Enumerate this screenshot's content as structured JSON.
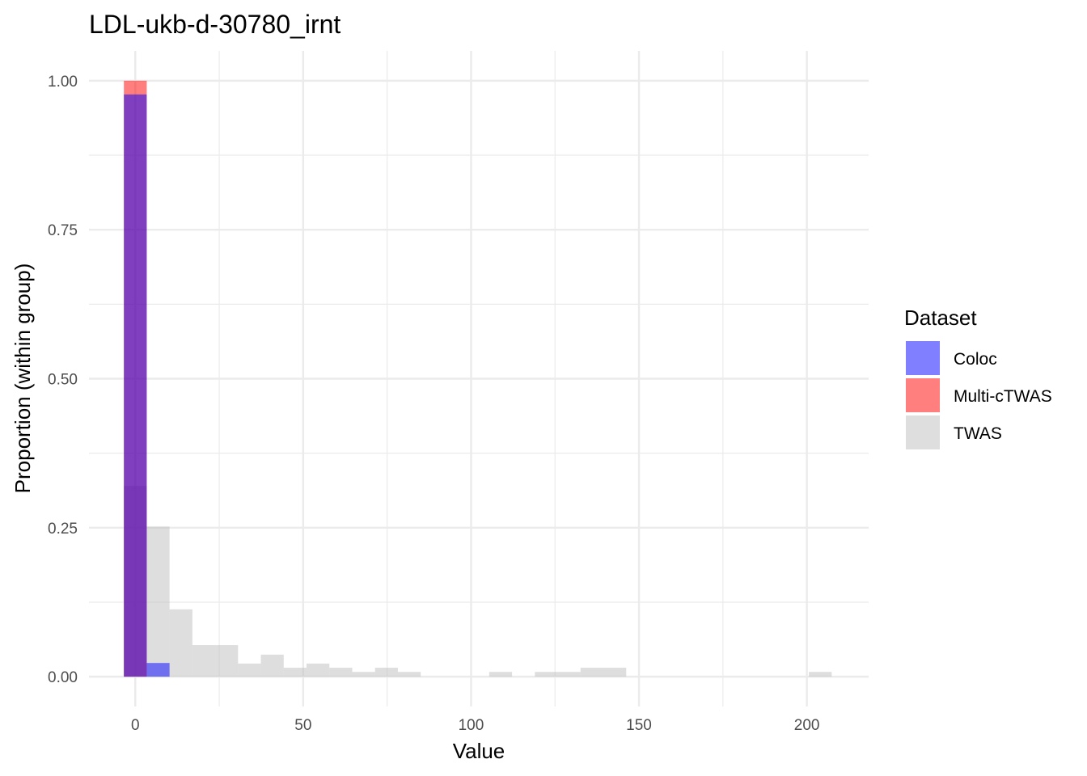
{
  "chart_data": {
    "type": "histogram",
    "title": "LDL-ukb-d-30780_irnt",
    "xlabel": "Value",
    "ylabel": "Proportion (within group)",
    "xlim": [
      -13.8,
      218.4
    ],
    "ylim": [
      -0.05,
      1.05
    ],
    "x_ticks": [
      0,
      50,
      100,
      150,
      200
    ],
    "x_tick_labels": [
      "0",
      "50",
      "100",
      "150",
      "200"
    ],
    "y_ticks": [
      0,
      0.25,
      0.5,
      0.75,
      1.0
    ],
    "y_tick_labels": [
      "0.00",
      "0.25",
      "0.50",
      "0.75",
      "1.00"
    ],
    "grid": true,
    "bin_width": 6.8,
    "legend": {
      "title": "Dataset",
      "position": "right",
      "items": [
        {
          "label": "Coloc",
          "color": "#0000FF"
        },
        {
          "label": "Multi-cTWAS",
          "color": "#FF0000"
        },
        {
          "label": "TWAS",
          "color": "#BEBEBE"
        }
      ]
    },
    "series": [
      {
        "name": "TWAS",
        "color": "#BEBEBE",
        "opacity": 0.5,
        "bars": [
          {
            "x": 0,
            "y": 0.32
          },
          {
            "x": 6.8,
            "y": 0.252
          },
          {
            "x": 13.6,
            "y": 0.113
          },
          {
            "x": 20.4,
            "y": 0.053
          },
          {
            "x": 27.2,
            "y": 0.053
          },
          {
            "x": 34,
            "y": 0.022
          },
          {
            "x": 40.8,
            "y": 0.037
          },
          {
            "x": 47.6,
            "y": 0.015
          },
          {
            "x": 54.4,
            "y": 0.022
          },
          {
            "x": 61.2,
            "y": 0.015
          },
          {
            "x": 68,
            "y": 0.008
          },
          {
            "x": 74.8,
            "y": 0.015
          },
          {
            "x": 81.6,
            "y": 0.008
          },
          {
            "x": 108.8,
            "y": 0.008
          },
          {
            "x": 122.4,
            "y": 0.008
          },
          {
            "x": 129.2,
            "y": 0.008
          },
          {
            "x": 136,
            "y": 0.015
          },
          {
            "x": 142.8,
            "y": 0.015
          },
          {
            "x": 204,
            "y": 0.008
          }
        ]
      },
      {
        "name": "Multi-cTWAS",
        "color": "#FF0000",
        "opacity": 0.5,
        "bars": [
          {
            "x": 0,
            "y": 1.0
          }
        ]
      },
      {
        "name": "Coloc",
        "color": "#0000FF",
        "opacity": 0.5,
        "bars": [
          {
            "x": 0,
            "y": 0.977
          },
          {
            "x": 6.8,
            "y": 0.023
          }
        ]
      }
    ]
  }
}
